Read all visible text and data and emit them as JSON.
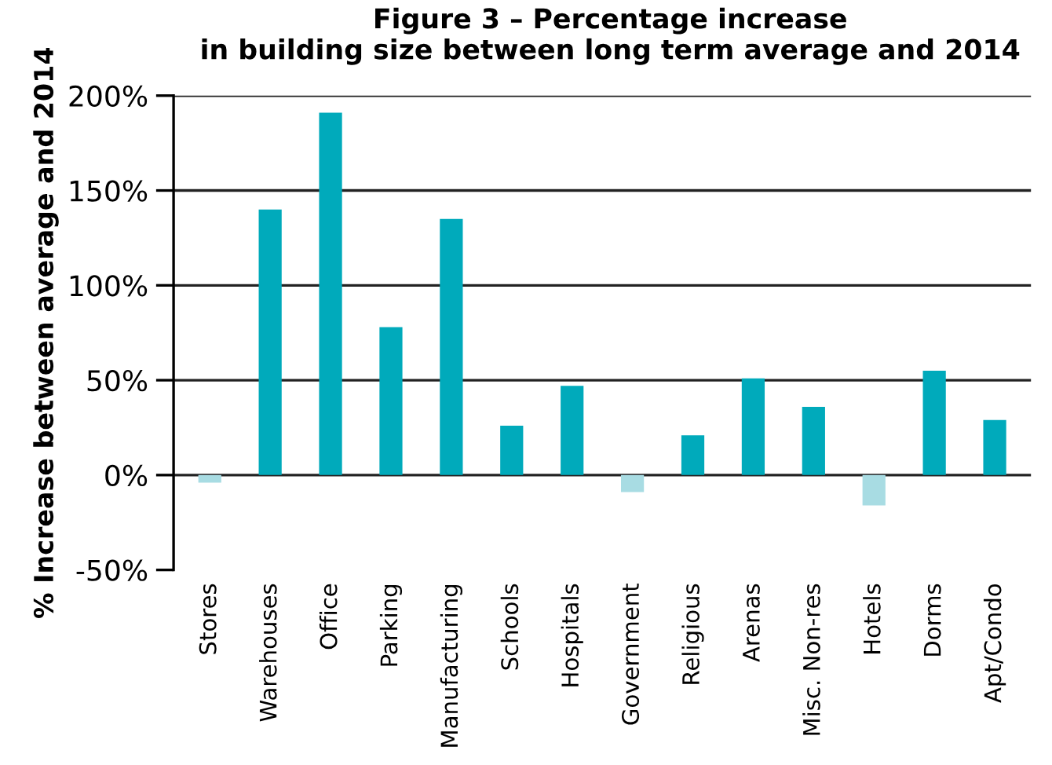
{
  "chart_data": {
    "type": "bar",
    "title": "Figure 3 – Percentage increase\nin building size between long term average and 2014",
    "ylabel": "% Increase between average and 2014",
    "categories": [
      "Stores",
      "Warehouses",
      "Office",
      "Parking",
      "Manufacturing",
      "Schools",
      "Hospitals",
      "Government",
      "Religious",
      "Arenas",
      "Misc. Non-res",
      "Hotels",
      "Dorms",
      "Apt/Condo"
    ],
    "values": [
      -4,
      140,
      191,
      78,
      135,
      26,
      47,
      -9,
      21,
      51,
      36,
      -16,
      55,
      29
    ],
    "colors": [
      "#a8dce3",
      "#00aabb",
      "#00aabb",
      "#00aabb",
      "#00aabb",
      "#00aabb",
      "#00aabb",
      "#a8dce3",
      "#00aabb",
      "#00aabb",
      "#00aabb",
      "#a8dce3",
      "#00aabb",
      "#00aabb"
    ],
    "ylim": [
      -50,
      200
    ],
    "yticks": [
      {
        "value": -50,
        "label": "-50%"
      },
      {
        "value": 0,
        "label": "0%"
      },
      {
        "value": 50,
        "label": "50%"
      },
      {
        "value": 100,
        "label": "100%"
      },
      {
        "value": 150,
        "label": "150%"
      },
      {
        "value": 200,
        "label": "200%"
      }
    ],
    "grid": "y"
  }
}
